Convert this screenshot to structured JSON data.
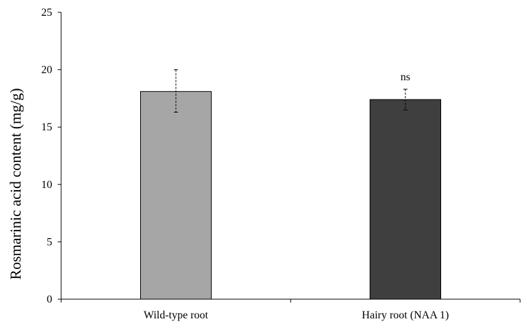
{
  "chart_data": {
    "type": "bar",
    "title": "",
    "xlabel": "",
    "ylabel": "Rosmarinic  acid content  (mg/g)",
    "ylim": [
      0,
      25
    ],
    "yticks": [
      0,
      5,
      10,
      15,
      20,
      25
    ],
    "grid": false,
    "categories": [
      "Wild-type root",
      "Hairy root (NAA 1)"
    ],
    "values": [
      18.1,
      17.4
    ],
    "error_low": [
      16.3,
      16.5
    ],
    "error_high": [
      20.0,
      18.3
    ],
    "annotations": [
      "",
      "ns"
    ],
    "colors": [
      "#a6a6a6",
      "#3f3f3f"
    ]
  }
}
